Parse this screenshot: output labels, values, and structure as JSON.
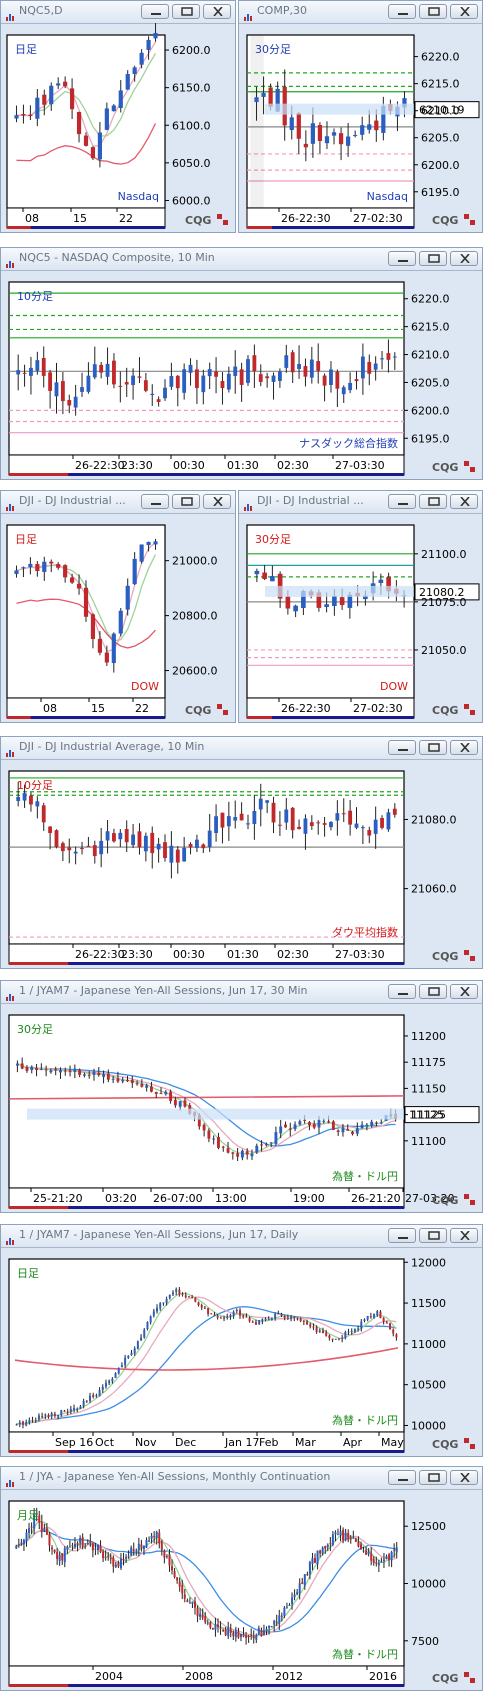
{
  "colors": {
    "up": "#2a5fc1",
    "down": "#c0282b",
    "ma_short": "#e7a9bd",
    "ma_mid": "#9fd29a",
    "ma_long": "#e35a6a",
    "ma_blue": "#3d8ee6",
    "green_line": "#22a822",
    "pink_line": "#f09ac8",
    "price_box": "#c9dff6",
    "axis_bg": "#ffffff",
    "panel_bg": "#dde7f3"
  },
  "panels": [
    {
      "id": "nqc5-daily",
      "title": "NQC5,D",
      "label": "日足",
      "label_color": "#1f3db5",
      "inst": "Nasdaq",
      "inst_color": "#1f3db5",
      "chart_data": {
        "type": "candlestick",
        "title": "NQC5,D",
        "x": [
          "08",
          "15",
          "22"
        ],
        "y_ticks": [
          6000.0,
          6050.0,
          6100.0,
          6150.0,
          6200.0
        ],
        "ylim": [
          5990,
          6220
        ]
      }
    },
    {
      "id": "comp-30",
      "title": "COMP,30",
      "label": "30分足",
      "label_color": "#1f3db5",
      "inst": "Nasdaq",
      "inst_color": "#1f3db5",
      "last_price": "6210.19",
      "chart_data": {
        "type": "candlestick",
        "title": "COMP,30",
        "x": [
          "26-22:30",
          "27-02:30"
        ],
        "y_ticks": [
          6195.0,
          6200.0,
          6205.0,
          6210.0,
          6215.0,
          6220.0
        ],
        "ylim": [
          6192,
          6224
        ],
        "last": 6210.19
      }
    },
    {
      "id": "nqc5-10min",
      "title": "NQC5 - NASDAQ Composite, 10 Min",
      "label": "10分足",
      "label_color": "#1f3db5",
      "inst": "ナスダック総合指数",
      "inst_color": "#1f3db5",
      "chart_data": {
        "type": "candlestick",
        "title": "NQC5 - NASDAQ Composite, 10 Min",
        "x": [
          "26-22:30",
          "23:30",
          "00:30",
          "01:30",
          "02:30",
          "27-03:30"
        ],
        "y_ticks": [
          6195.0,
          6200.0,
          6205.0,
          6210.0,
          6215.0,
          6220.0
        ],
        "ylim": [
          6192,
          6223
        ]
      }
    },
    {
      "id": "dji-daily",
      "title": "DJI - DJ Industrial ...",
      "label": "日足",
      "label_color": "#d21a1a",
      "inst": "DOW",
      "inst_color": "#d21a1a",
      "chart_data": {
        "type": "candlestick",
        "title": "DJI - DJ Industrial ...",
        "x": [
          "08",
          "15",
          "22"
        ],
        "y_ticks": [
          20600.0,
          20800.0,
          21000.0
        ],
        "ylim": [
          20500,
          21130
        ]
      }
    },
    {
      "id": "dji-30",
      "title": "DJI - DJ Industrial ...",
      "label": "30分足",
      "label_color": "#d21a1a",
      "inst": "DOW",
      "inst_color": "#d21a1a",
      "last_price": "21080.2",
      "chart_data": {
        "type": "candlestick",
        "title": "DJI - DJ Industrial ...",
        "x": [
          "26-22:30",
          "27-02:30"
        ],
        "y_ticks": [
          21050.0,
          21075.0,
          21100.0
        ],
        "ylim": [
          21025,
          21115
        ],
        "last": 21080.2
      }
    },
    {
      "id": "dji-10min",
      "title": "DJI - DJ Industrial Average, 10 Min",
      "label": "10分足",
      "label_color": "#d21a1a",
      "inst": "ダウ平均指数",
      "inst_color": "#d21a1a",
      "chart_data": {
        "type": "candlestick",
        "title": "DJI - DJ Industrial Average, 10 Min",
        "x": [
          "26-22:30",
          "23:30",
          "00:30",
          "01:30",
          "02:30",
          "27-03:30"
        ],
        "y_ticks": [
          21060.0,
          21080.0
        ],
        "ylim": [
          21044,
          21094
        ]
      }
    },
    {
      "id": "jyam7-30",
      "title": "1 / JYAM7 - Japanese Yen-All Sessions, Jun 17, 30 Min",
      "label": "30分足",
      "label_color": "#1d8b1d",
      "inst": "為替・ドル円",
      "inst_color": "#1d8b1d",
      "last_price": "11125",
      "chart_data": {
        "type": "candlestick",
        "title": "1 / JYAM7 - Japanese Yen-All Sessions, Jun 17, 30 Min",
        "x": [
          "25-21:20",
          "03:20",
          "26-07:00",
          "13:00",
          "19:00",
          "26-21:20",
          "27-03:20"
        ],
        "y_ticks": [
          11100,
          11125,
          11150,
          11175,
          11200
        ],
        "ylim": [
          11055,
          11220
        ],
        "last": 11125
      }
    },
    {
      "id": "jyam7-daily",
      "title": "1 / JYAM7 - Japanese Yen-All Sessions, Jun 17, Daily",
      "label": "日足",
      "label_color": "#1d8b1d",
      "inst": "為替・ドル円",
      "inst_color": "#1d8b1d",
      "chart_data": {
        "type": "candlestick",
        "title": "1 / JYAM7 - Japanese Yen-All Sessions, Jun 17, Daily",
        "x": [
          "Sep 16",
          "Oct",
          "Nov",
          "Dec",
          "Jan 17",
          "Feb",
          "Mar",
          "Apr",
          "May"
        ],
        "y_ticks": [
          10000,
          10500,
          11000,
          11500,
          12000
        ],
        "ylim": [
          9920,
          12040
        ]
      }
    },
    {
      "id": "jya-monthly",
      "title": "1 / JYA - Japanese Yen-All Sessions, Monthly Continuation",
      "label": "月足",
      "label_color": "#1d8b1d",
      "inst": "為替・ドル円",
      "inst_color": "#1d8b1d",
      "chart_data": {
        "type": "candlestick",
        "title": "1 / JYA - Japanese Yen-All Sessions, Monthly Continuation",
        "x": [
          "2004",
          "2008",
          "2012",
          "2016"
        ],
        "y_ticks": [
          7500,
          10000,
          12500
        ],
        "ylim": [
          6400,
          13600
        ]
      }
    }
  ],
  "branding": {
    "logo": "CQG"
  }
}
